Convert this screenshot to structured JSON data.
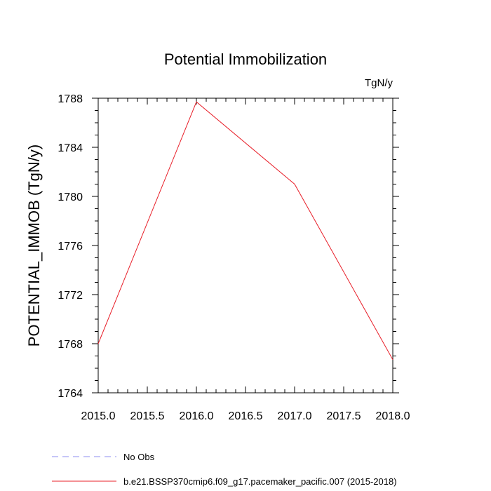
{
  "chart_data": {
    "type": "line",
    "title": "Potential Immobilization",
    "units_label": "TgN/y",
    "ylabel": "POTENTIAL_IMMOB  (TgN/y)",
    "xlabel": "",
    "xlim": [
      2015.0,
      2018.0
    ],
    "ylim": [
      1764,
      1788
    ],
    "x_ticks": [
      2015.0,
      2015.5,
      2016.0,
      2016.5,
      2017.0,
      2017.5,
      2018.0
    ],
    "x_tick_labels": [
      "2015.0",
      "2015.5",
      "2016.0",
      "2016.5",
      "2017.0",
      "2017.5",
      "2018.0"
    ],
    "y_ticks": [
      1764,
      1768,
      1772,
      1776,
      1780,
      1784,
      1788
    ],
    "y_tick_labels": [
      "1764",
      "1768",
      "1772",
      "1776",
      "1780",
      "1784",
      "1788"
    ],
    "grid": false,
    "legend_position": "bottom-left",
    "series": [
      {
        "name": "b.e21.BSSP370cmip6.f09_g17.pacemaker_pacific.007 (2015-2018)",
        "color": "#e8202a",
        "style": "solid",
        "x": [
          2015.0,
          2016.0,
          2017.0,
          2018.0
        ],
        "y": [
          1768.0,
          1787.7,
          1781.0,
          1766.7
        ]
      }
    ],
    "legend": [
      {
        "label": "No Obs",
        "color": "#8c8cf0",
        "style": "dashed"
      },
      {
        "label": "b.e21.BSSP370cmip6.f09_g17.pacemaker_pacific.007 (2015-2018)",
        "color": "#e8202a",
        "style": "solid"
      }
    ]
  }
}
